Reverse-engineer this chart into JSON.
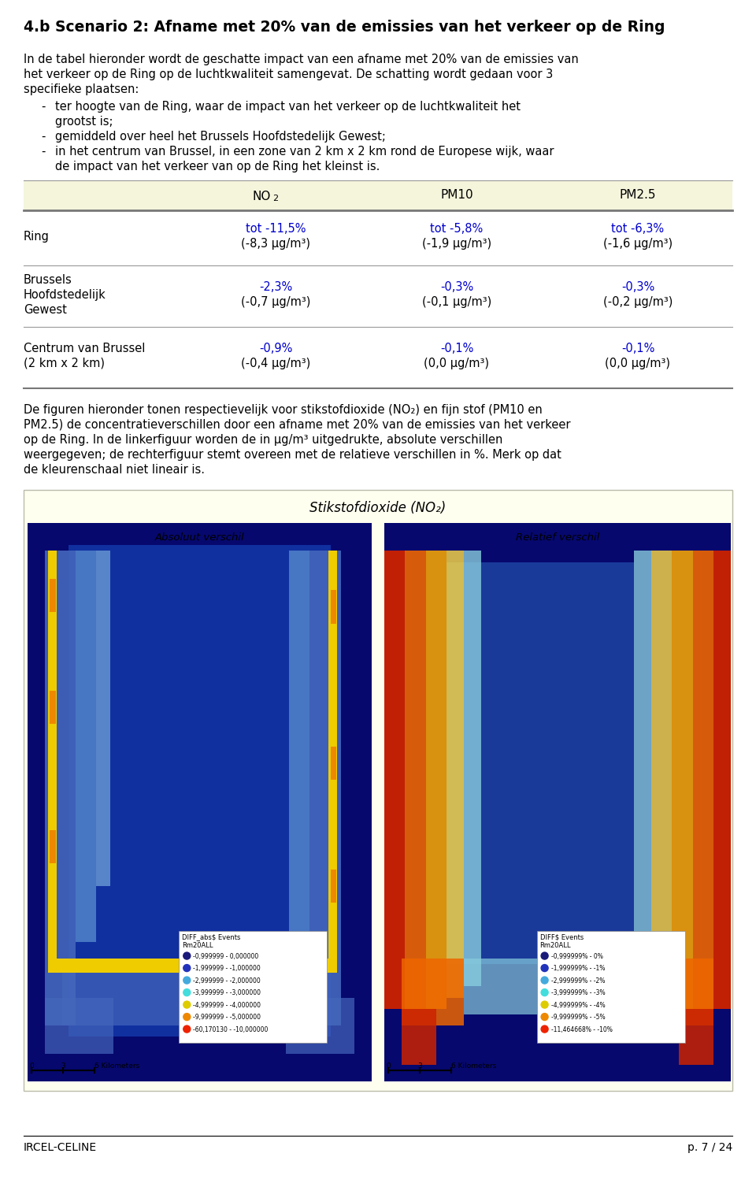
{
  "title": "4.b Scenario 2: Afname met 20% van de emissies van het verkeer op de Ring",
  "intro_lines": [
    "In de tabel hieronder wordt de geschatte impact van een afname met 20% van de emissies van",
    "het verkeer op de Ring op de luchtkwaliteit samengevat. De schatting wordt gedaan voor 3",
    "specifieke plaatsen:"
  ],
  "bullets": [
    [
      "ter hoogte van de Ring, waar de impact van het verkeer op de luchtkwaliteit het",
      "grootst is;"
    ],
    [
      "gemiddeld over heel het Brussels Hoofdstedelijk Gewest;"
    ],
    [
      "in het centrum van Brussel, in een zone van 2 km x 2 km rond de Europese wijk, waar",
      "de impact van het verkeer van op de Ring het kleinst is."
    ]
  ],
  "table_header": [
    "NO₂",
    "PM10",
    "PM2.5"
  ],
  "table_rows": [
    {
      "label_lines": [
        "Ring"
      ],
      "no2": [
        "tot -11,5%",
        "(-8,3 μg/m³)"
      ],
      "pm10": [
        "tot -5,8%",
        "(-1,9 μg/m³)"
      ],
      "pm25": [
        "tot -6,3%",
        "(-1,6 μg/m³)"
      ]
    },
    {
      "label_lines": [
        "Brussels",
        "Hoofdstedelijk",
        "Gewest"
      ],
      "no2": [
        "-2,3%",
        "(-0,7 μg/m³)"
      ],
      "pm10": [
        "-0,3%",
        "(-0,1 μg/m³)"
      ],
      "pm25": [
        "-0,3%",
        "(-0,2 μg/m³)"
      ]
    },
    {
      "label_lines": [
        "Centrum van Brussel",
        "(2 km x 2 km)"
      ],
      "no2": [
        "-0,9%",
        "(-0,4 μg/m³)"
      ],
      "pm10": [
        "-0,1%",
        "(0,0 μg/m³)"
      ],
      "pm25": [
        "-0,1%",
        "(0,0 μg/m³)"
      ]
    }
  ],
  "para_lines": [
    "De figuren hieronder tonen respectievelijk voor stikstofdioxide (NO₂) en fijn stof (PM10 en",
    "PM2.5) de concentratieverschillen door een afname met 20% van de emissies van het verkeer",
    "op de Ring. In de linkerfiguur worden de in μg/m³ uitgedrukte, absolute verschillen",
    "weergegeven; de rechterfiguur stemt overeen met de relatieve verschillen in %. Merk op dat",
    "de kleurenschaal niet lineair is."
  ],
  "map_section_title": "Stikstofdioxide (NO₂)",
  "left_map_subtitle": "Absoluut verschil",
  "right_map_subtitle": "Relatief verschil",
  "left_legend_header": "DIFF_abs$ Events\nRm20ALL",
  "right_legend_header": "DIFF$ Events\nRm20ALL",
  "left_legend": [
    [
      "#1a1a7a",
      "-0,999999 - 0,000000"
    ],
    [
      "#2233bb",
      "-1,999999 - -1,000000"
    ],
    [
      "#44aadd",
      "-2,999999 - -2,000000"
    ],
    [
      "#44dddd",
      "-3,999999 - -3,000000"
    ],
    [
      "#ddcc00",
      "-4,999999 - -4,000000"
    ],
    [
      "#ee8800",
      "-9,999999 - -5,000000"
    ],
    [
      "#ee2200",
      "-60,170130 - -10,000000"
    ]
  ],
  "right_legend": [
    [
      "#1a1a7a",
      "-0,999999% - 0%"
    ],
    [
      "#2233bb",
      "-1,999999% - -1%"
    ],
    [
      "#44aadd",
      "-2,999999% - -2%"
    ],
    [
      "#44dddd",
      "-3,999999% - -3%"
    ],
    [
      "#ddcc00",
      "-4,999999% - -4%"
    ],
    [
      "#ee8800",
      "-9,999999% - -5%"
    ],
    [
      "#ee2200",
      "-11,464668% - -10%"
    ]
  ],
  "footer_left": "IRCEL-CELINE",
  "footer_right": "p. 7 / 24",
  "page_bg": "#ffffff",
  "table_header_bg": "#f5f5dc",
  "map_section_bg": "#fffff0",
  "blue_color": "#0000cc",
  "line_color": "#999999",
  "body_fs": 10.5,
  "title_fs": 13.5
}
